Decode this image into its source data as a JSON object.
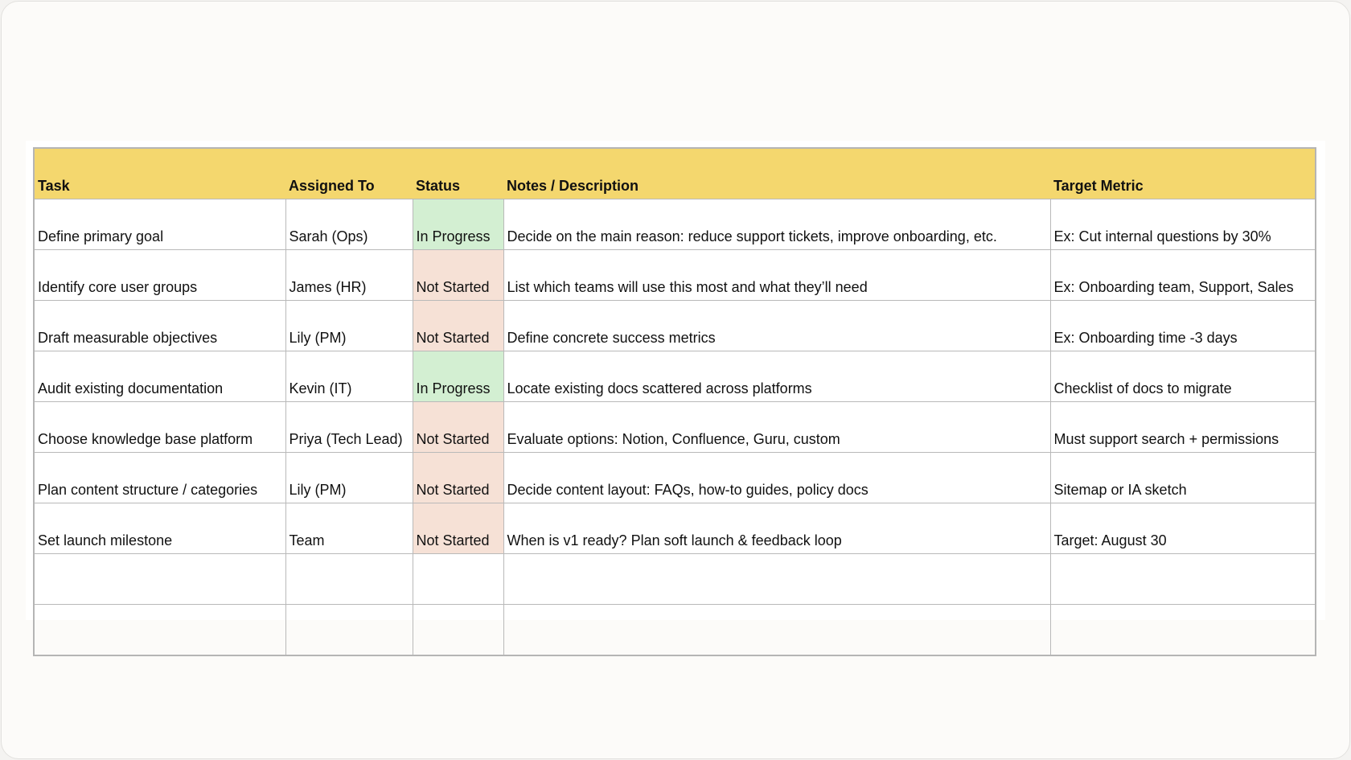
{
  "headers": [
    "Task",
    "Assigned To",
    "Status",
    "Notes / Description",
    "Target Metric"
  ],
  "status_colors": {
    "In Progress": "#d3efd2",
    "Not Started": "#f6e1d6"
  },
  "header_color": "#f4d76e",
  "rows": [
    {
      "task": "Define primary goal",
      "assigned": "Sarah (Ops)",
      "status": "In Progress",
      "notes": "Decide on the main reason: reduce support tickets, improve onboarding, etc.",
      "metric": "Ex: Cut internal questions by 30%"
    },
    {
      "task": "Identify core user groups",
      "assigned": "James (HR)",
      "status": "Not Started",
      "notes": "List which teams will use this most and what they’ll need",
      "metric": "Ex: Onboarding team, Support, Sales"
    },
    {
      "task": "Draft measurable objectives",
      "assigned": "Lily (PM)",
      "status": "Not Started",
      "notes": "Define concrete success metrics",
      "metric": "Ex: Onboarding time -3 days"
    },
    {
      "task": "Audit existing documentation",
      "assigned": "Kevin (IT)",
      "status": "In Progress",
      "notes": "Locate existing docs scattered across platforms",
      "metric": "Checklist of docs to migrate"
    },
    {
      "task": "Choose knowledge base platform",
      "assigned": "Priya (Tech Lead)",
      "status": "Not Started",
      "notes": "Evaluate options: Notion, Confluence, Guru, custom",
      "metric": "Must support search + permissions"
    },
    {
      "task": "Plan content structure / categories",
      "assigned": "Lily (PM)",
      "status": "Not Started",
      "notes": "Decide content layout: FAQs, how-to guides, policy docs",
      "metric": "Sitemap or IA sketch"
    },
    {
      "task": "Set launch milestone",
      "assigned": "Team",
      "status": "Not Started",
      "notes": "When is v1 ready? Plan soft launch & feedback loop",
      "metric": "Target: August 30"
    },
    {
      "task": "",
      "assigned": "",
      "status": "",
      "notes": "",
      "metric": ""
    },
    {
      "task": "",
      "assigned": "",
      "status": "",
      "notes": "",
      "metric": ""
    }
  ]
}
